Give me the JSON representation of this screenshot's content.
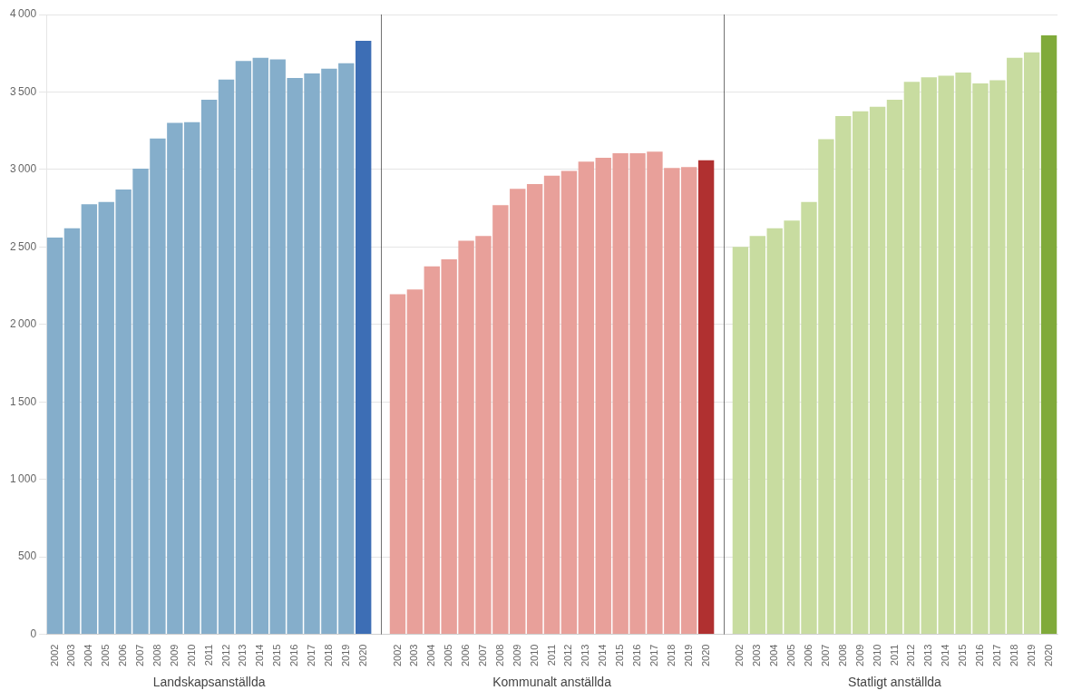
{
  "chart_data": {
    "type": "bar",
    "categories": [
      "2002",
      "2003",
      "2004",
      "2005",
      "2006",
      "2007",
      "2008",
      "2009",
      "2010",
      "2011",
      "2012",
      "2013",
      "2014",
      "2015",
      "2016",
      "2017",
      "2018",
      "2019",
      "2020"
    ],
    "series": [
      {
        "name": "Landskapsanställda",
        "values": [
          2560,
          2620,
          2775,
          2790,
          2870,
          3005,
          3200,
          3300,
          3305,
          3450,
          3580,
          3700,
          3720,
          3710,
          3590,
          3620,
          3650,
          3685,
          3830
        ],
        "colors": [
          "#85aecb",
          "#85aecb",
          "#85aecb",
          "#85aecb",
          "#85aecb",
          "#85aecb",
          "#85aecb",
          "#85aecb",
          "#85aecb",
          "#85aecb",
          "#85aecb",
          "#85aecb",
          "#85aecb",
          "#85aecb",
          "#85aecb",
          "#85aecb",
          "#85aecb",
          "#85aecb",
          "#3d6eb5"
        ]
      },
      {
        "name": "Kommunalt anställda",
        "values": [
          2195,
          2225,
          2375,
          2420,
          2540,
          2570,
          2770,
          2875,
          2905,
          2960,
          2990,
          3050,
          3075,
          3105,
          3105,
          3115,
          3010,
          3015,
          3060
        ],
        "colors": [
          "#e8a09a",
          "#e8a09a",
          "#e8a09a",
          "#e8a09a",
          "#e8a09a",
          "#e8a09a",
          "#e8a09a",
          "#e8a09a",
          "#e8a09a",
          "#e8a09a",
          "#e8a09a",
          "#e8a09a",
          "#e8a09a",
          "#e8a09a",
          "#e8a09a",
          "#e8a09a",
          "#e8a09a",
          "#e8a09a",
          "#b03030"
        ]
      },
      {
        "name": "Statligt anställda",
        "values": [
          2500,
          2570,
          2620,
          2670,
          2790,
          3195,
          3345,
          3375,
          3405,
          3450,
          3565,
          3595,
          3605,
          3625,
          3555,
          3575,
          3720,
          3755,
          3865
        ],
        "colors": [
          "#c8dca0",
          "#c8dca0",
          "#c8dca0",
          "#c8dca0",
          "#c8dca0",
          "#c8dca0",
          "#c8dca0",
          "#c8dca0",
          "#c8dca0",
          "#c8dca0",
          "#c8dca0",
          "#c8dca0",
          "#c8dca0",
          "#c8dca0",
          "#c8dca0",
          "#c8dca0",
          "#c8dca0",
          "#c8dca0",
          "#80aa3a"
        ]
      }
    ],
    "ylim": [
      0,
      4000
    ],
    "yticks": [
      0,
      500,
      {
        "value": 1000,
        "label": "1 000"
      },
      {
        "value": 1500,
        "label": "1 500"
      },
      {
        "value": 2000,
        "label": "2 000"
      },
      {
        "value": 2500,
        "label": "2 500"
      },
      {
        "value": 3000,
        "label": "3 000"
      },
      {
        "value": 3500,
        "label": "3 500"
      },
      {
        "value": 4000,
        "label": "4 000"
      }
    ],
    "grid": true
  }
}
